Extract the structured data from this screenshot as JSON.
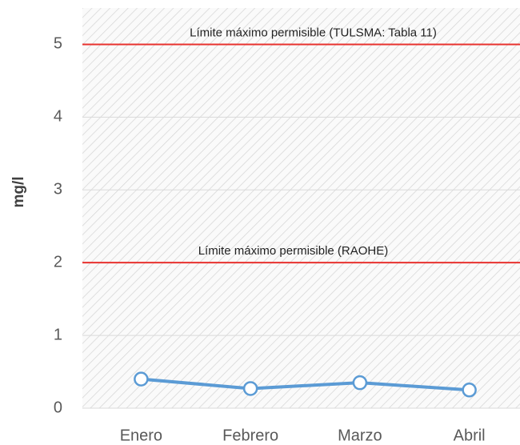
{
  "chart_data": {
    "type": "line",
    "categories": [
      "Enero",
      "Febrero",
      "Marzo",
      "Abril"
    ],
    "series": [
      {
        "name": "mg/l",
        "color": "#5b9bd5",
        "values": [
          0.4,
          0.27,
          0.35,
          0.25
        ]
      }
    ],
    "y_label": "mg/l",
    "ylim": [
      0,
      5.5
    ],
    "yticks": [
      0,
      1,
      2,
      3,
      4,
      5
    ],
    "grid": true,
    "reference_lines": [
      {
        "value": 5,
        "label": "Límite máximo permisible (TULSMA: Tabla 11)",
        "color": "#e8322f"
      },
      {
        "value": 2,
        "label": "Límite máximo permisible (RAOHE)",
        "color": "#e8322f"
      }
    ]
  }
}
